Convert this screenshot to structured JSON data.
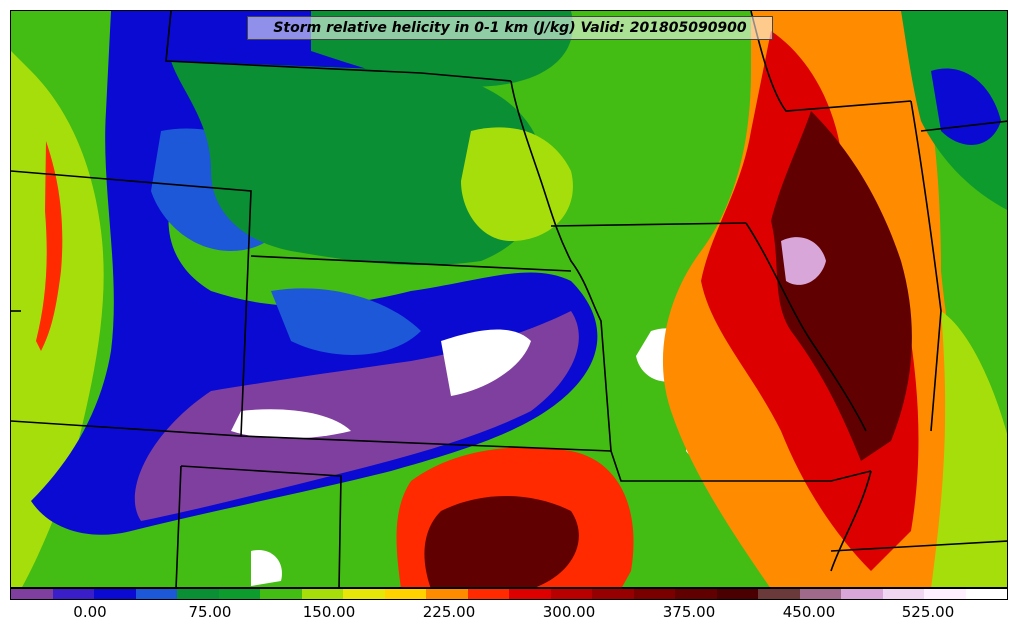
{
  "title": "Storm relative helicity in 0-1 km (J/kg) Valid: 201805090900",
  "colorbar": {
    "colors": [
      "#7f3f9f",
      "#3a1fc8",
      "#0a0ad2",
      "#1c58d8",
      "#0a8f35",
      "#0d9b2d",
      "#43bc14",
      "#a6de0c",
      "#e6e60a",
      "#ffd200",
      "#ff8c00",
      "#ff2a00",
      "#dd0000",
      "#b80000",
      "#960000",
      "#7a0000",
      "#600000",
      "#4a0000",
      "#6a3a3a",
      "#a06a8a",
      "#d8a6d8",
      "#f0d6f0",
      "#fff0ff",
      "#ffffff"
    ],
    "tick_labels": [
      "0.00",
      "75.00",
      "150.00",
      "225.00",
      "300.00",
      "375.00",
      "450.00",
      "525.00"
    ]
  },
  "map_colors": {
    "negative": "#7f3f9f",
    "low_blue": "#0a0ad2",
    "mid_blue": "#1c58d8",
    "green": "#0a8f35",
    "light_green": "#43bc14",
    "yellow_green": "#a6de0c",
    "yellow": "#e6e60a",
    "orange": "#ff8c00",
    "red": "#ff2a00",
    "dark_red": "#b80000",
    "maroon": "#600000",
    "pink": "#d8a6d8",
    "white": "#ffffff",
    "border": "#000000"
  }
}
